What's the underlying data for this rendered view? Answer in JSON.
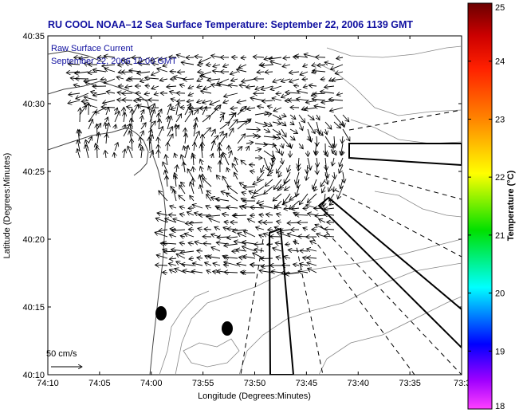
{
  "title": "RU COOL  NOAA–12  Sea Surface Temperature:  September 22, 2006 1139 GMT",
  "legend": {
    "line1": "Raw Surface Current",
    "line2": "September 22, 2006 12:00 GMT"
  },
  "axes": {
    "xlabel": "Longitude (Degrees:Minutes)",
    "ylabel": "Latitude (Degrees:Minutes)",
    "xticks": [
      "74:10",
      "74:05",
      "74:00",
      "73:55",
      "73:50",
      "73:45",
      "73:40",
      "73:35",
      "73:3"
    ],
    "yticks": [
      "40:35",
      "40:30",
      "40:25",
      "40:20",
      "40:15",
      "40:10"
    ]
  },
  "scale_arrow": {
    "label": "50 cm/s"
  },
  "colorbar": {
    "title": "Temperature (°C)",
    "ticks": [
      "25",
      "24",
      "23",
      "22",
      "21",
      "20",
      "19",
      "18"
    ],
    "range": [
      18,
      25
    ],
    "colors": [
      "#8b0000",
      "#ff0000",
      "#ff8000",
      "#ffff00",
      "#00ff00",
      "#00ffff",
      "#0000ff",
      "#ff00ff"
    ]
  }
}
